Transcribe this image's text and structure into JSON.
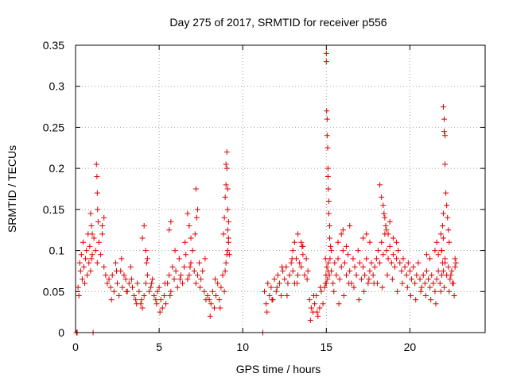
{
  "chart_data": {
    "type": "scatter",
    "title": "Day 275 of 2017, SRMTID for receiver p556",
    "xlabel": "GPS time / hours",
    "ylabel": "SRMTID / TECUs",
    "xlim": [
      0,
      24.5
    ],
    "ylim": [
      0,
      0.35
    ],
    "xticks": [
      0,
      5,
      10,
      15,
      20
    ],
    "yticks": [
      0,
      0.05,
      0.1,
      0.15,
      0.2,
      0.25,
      0.3,
      0.35
    ],
    "xtick_labels": [
      "0",
      "5",
      "10",
      "15",
      "20"
    ],
    "ytick_labels": [
      "0",
      "0.05",
      "0.1",
      "0.15",
      "0.2",
      "0.25",
      "0.3",
      "0.35"
    ],
    "grid": true,
    "marker": "+",
    "color": "#e00000",
    "series": [
      {
        "name": "SRMTID",
        "x": [
          0.05,
          0.1,
          1.05,
          11.2,
          0.15,
          0.2,
          0.25,
          0.3,
          0.35,
          0.4,
          0.45,
          0.5,
          0.55,
          0.6,
          0.65,
          0.7,
          0.75,
          0.8,
          0.85,
          0.9,
          0.95,
          1.0,
          1.1,
          1.2,
          1.3,
          1.4,
          1.5,
          1.6,
          1.7,
          1.8,
          1.9,
          1.25,
          1.28,
          1.3,
          1.32,
          1.35,
          0.9,
          0.95,
          1.0,
          1.6,
          1.7,
          2.0,
          2.1,
          2.2,
          2.3,
          2.4,
          2.5,
          2.6,
          2.7,
          2.8,
          2.9,
          3.0,
          3.1,
          3.2,
          3.3,
          3.4,
          3.5,
          3.6,
          3.7,
          3.8,
          3.9,
          4.0,
          4.1,
          4.2,
          4.3,
          4.4,
          4.5,
          4.6,
          4.7,
          4.8,
          4.9,
          2.15,
          2.45,
          2.75,
          3.05,
          3.35,
          3.65,
          3.95,
          4.25,
          4.55,
          4.85,
          4.0,
          4.1,
          4.2,
          4.3,
          5.0,
          5.1,
          5.2,
          5.3,
          5.4,
          5.5,
          5.6,
          5.7,
          5.8,
          5.9,
          6.0,
          6.1,
          6.2,
          6.3,
          6.4,
          6.5,
          6.6,
          6.7,
          6.8,
          6.9,
          7.0,
          7.1,
          7.2,
          7.3,
          7.4,
          7.5,
          7.6,
          7.7,
          7.8,
          7.9,
          5.05,
          5.35,
          5.65,
          5.95,
          6.25,
          6.55,
          6.85,
          7.15,
          7.45,
          7.75,
          5.6,
          5.7,
          6.7,
          6.8,
          6.9,
          7.2,
          7.3,
          7.25,
          8.0,
          8.1,
          8.2,
          8.3,
          8.4,
          8.5,
          8.6,
          8.7,
          8.8,
          8.9,
          9.0,
          9.05,
          9.1,
          9.15,
          8.05,
          8.35,
          8.65,
          8.95,
          8.85,
          8.9,
          8.95,
          9.0,
          9.0,
          9.05,
          9.05,
          9.1,
          9.1,
          9.15,
          9.1,
          9.15,
          9.2,
          11.3,
          11.4,
          11.5,
          11.6,
          11.7,
          11.8,
          11.9,
          12.0,
          12.1,
          12.2,
          12.3,
          12.4,
          12.5,
          12.6,
          12.7,
          12.8,
          12.9,
          13.0,
          13.1,
          13.2,
          13.3,
          13.4,
          13.5,
          13.6,
          13.7,
          13.8,
          13.9,
          11.45,
          11.75,
          12.05,
          12.35,
          12.65,
          12.95,
          13.25,
          13.55,
          13.85,
          13.0,
          13.1,
          13.3,
          13.5,
          13.6,
          14.0,
          14.1,
          14.2,
          14.3,
          14.4,
          14.5,
          14.6,
          14.7,
          14.8,
          14.9,
          14.95,
          14.05,
          14.25,
          14.45,
          14.65,
          14.95,
          15.0,
          15.0,
          15.02,
          15.05,
          15.05,
          15.08,
          15.1,
          15.1,
          15.12,
          15.15,
          15.15,
          15.2,
          15.2,
          15.25,
          15.3,
          14.98,
          15.0,
          15.03,
          15.07,
          15.1,
          15.12,
          15.18,
          15.22,
          15.3,
          15.4,
          15.5,
          15.6,
          15.7,
          15.8,
          15.9,
          16.0,
          16.1,
          16.2,
          16.3,
          16.4,
          16.5,
          16.6,
          16.7,
          16.8,
          16.9,
          17.0,
          17.1,
          17.2,
          17.3,
          17.4,
          17.5,
          17.6,
          17.7,
          17.8,
          17.9,
          15.45,
          15.75,
          16.05,
          16.35,
          16.65,
          16.95,
          17.25,
          17.55,
          17.85,
          15.7,
          15.9,
          16.0,
          16.2,
          16.4,
          17.2,
          17.4,
          17.6,
          18.0,
          18.1,
          18.2,
          18.3,
          18.4,
          18.5,
          18.6,
          18.7,
          18.8,
          18.9,
          19.0,
          19.1,
          19.2,
          19.3,
          19.4,
          19.5,
          19.6,
          19.7,
          19.8,
          19.9,
          18.05,
          18.35,
          18.65,
          18.95,
          19.25,
          19.55,
          19.85,
          18.2,
          18.3,
          18.4,
          18.45,
          18.5,
          18.55,
          18.6,
          18.7,
          18.8,
          19.0,
          19.2,
          20.0,
          20.1,
          20.2,
          20.3,
          20.4,
          20.5,
          20.6,
          20.7,
          20.8,
          20.9,
          21.0,
          21.1,
          21.2,
          21.3,
          21.4,
          21.5,
          21.6,
          21.7,
          21.8,
          21.9,
          20.05,
          20.35,
          20.65,
          20.95,
          21.25,
          21.55,
          21.85,
          21.0,
          21.2,
          21.5,
          21.6,
          21.7,
          21.85,
          21.9,
          21.95,
          21.95,
          22.0,
          22.0,
          22.05,
          22.05,
          22.1,
          22.1,
          22.15,
          22.2,
          22.25,
          22.3,
          22.35,
          21.9,
          22.0,
          22.1,
          22.0,
          22.1,
          22.2,
          22.3,
          22.4,
          22.5,
          22.6,
          22.7,
          22.75,
          22.05,
          22.35,
          22.65,
          22.45,
          22.55,
          22.7
        ],
        "y": [
          0,
          0,
          0,
          0,
          0.055,
          0.045,
          0.085,
          0.075,
          0.095,
          0.065,
          0.11,
          0.08,
          0.06,
          0.09,
          0.1,
          0.07,
          0.12,
          0.085,
          0.105,
          0.075,
          0.09,
          0.095,
          0.115,
          0.1,
          0.085,
          0.11,
          0.095,
          0.12,
          0.08,
          0.07,
          0.06,
          0.205,
          0.19,
          0.17,
          0.15,
          0.135,
          0.145,
          0.13,
          0.12,
          0.13,
          0.14,
          0.065,
          0.055,
          0.07,
          0.05,
          0.085,
          0.06,
          0.045,
          0.075,
          0.055,
          0.07,
          0.065,
          0.05,
          0.06,
          0.08,
          0.055,
          0.045,
          0.04,
          0.06,
          0.05,
          0.035,
          0.03,
          0.045,
          0.06,
          0.07,
          0.05,
          0.055,
          0.065,
          0.045,
          0.04,
          0.05,
          0.04,
          0.075,
          0.09,
          0.05,
          0.065,
          0.035,
          0.04,
          0.085,
          0.06,
          0.035,
          0.115,
          0.13,
          0.1,
          0.09,
          0.055,
          0.04,
          0.03,
          0.045,
          0.035,
          0.06,
          0.07,
          0.05,
          0.08,
          0.065,
          0.075,
          0.055,
          0.09,
          0.07,
          0.06,
          0.08,
          0.095,
          0.065,
          0.07,
          0.085,
          0.1,
          0.075,
          0.06,
          0.07,
          0.085,
          0.065,
          0.075,
          0.05,
          0.04,
          0.045,
          0.025,
          0.06,
          0.045,
          0.1,
          0.065,
          0.11,
          0.08,
          0.12,
          0.055,
          0.09,
          0.125,
          0.135,
          0.145,
          0.13,
          0.115,
          0.175,
          0.15,
          0.14,
          0.04,
          0.035,
          0.05,
          0.03,
          0.045,
          0.06,
          0.04,
          0.055,
          0.07,
          0.05,
          0.085,
          0.095,
          0.1,
          0.11,
          0.02,
          0.065,
          0.03,
          0.075,
          0.12,
          0.14,
          0.165,
          0.18,
          0.205,
          0.2,
          0.22,
          0.175,
          0.15,
          0.135,
          0.125,
          0.115,
          0.095,
          0.05,
          0.035,
          0.06,
          0.045,
          0.055,
          0.04,
          0.065,
          0.05,
          0.07,
          0.06,
          0.045,
          0.075,
          0.065,
          0.08,
          0.06,
          0.07,
          0.085,
          0.075,
          0.06,
          0.09,
          0.07,
          0.085,
          0.08,
          0.095,
          0.07,
          0.09,
          0.075,
          0.025,
          0.04,
          0.055,
          0.08,
          0.045,
          0.09,
          0.06,
          0.105,
          0.065,
          0.1,
          0.11,
          0.12,
          0.11,
          0.105,
          0.04,
          0.03,
          0.025,
          0.035,
          0.045,
          0.02,
          0.03,
          0.05,
          0.035,
          0.055,
          0.06,
          0.015,
          0.045,
          0.025,
          0.055,
          0.09,
          0.34,
          0.33,
          0.27,
          0.26,
          0.24,
          0.225,
          0.2,
          0.19,
          0.175,
          0.16,
          0.145,
          0.13,
          0.115,
          0.105,
          0.1,
          0.07,
          0.06,
          0.08,
          0.065,
          0.075,
          0.085,
          0.07,
          0.09,
          0.075,
          0.06,
          0.085,
          0.07,
          0.09,
          0.065,
          0.08,
          0.1,
          0.085,
          0.07,
          0.095,
          0.075,
          0.06,
          0.09,
          0.08,
          0.07,
          0.1,
          0.085,
          0.065,
          0.08,
          0.07,
          0.09,
          0.06,
          0.075,
          0.085,
          0.07,
          0.08,
          0.05,
          0.035,
          0.045,
          0.06,
          0.055,
          0.04,
          0.05,
          0.065,
          0.06,
          0.11,
          0.12,
          0.125,
          0.105,
          0.13,
          0.115,
          0.12,
          0.11,
          0.09,
          0.1,
          0.085,
          0.11,
          0.095,
          0.12,
          0.1,
          0.09,
          0.105,
          0.085,
          0.095,
          0.08,
          0.09,
          0.1,
          0.085,
          0.075,
          0.09,
          0.08,
          0.07,
          0.085,
          0.06,
          0.055,
          0.07,
          0.065,
          0.05,
          0.06,
          0.055,
          0.18,
          0.165,
          0.155,
          0.145,
          0.14,
          0.13,
          0.125,
          0.12,
          0.135,
          0.115,
          0.11,
          0.075,
          0.065,
          0.08,
          0.06,
          0.07,
          0.085,
          0.065,
          0.055,
          0.07,
          0.06,
          0.075,
          0.065,
          0.055,
          0.07,
          0.06,
          0.05,
          0.065,
          0.075,
          0.06,
          0.07,
          0.045,
          0.04,
          0.05,
          0.045,
          0.04,
          0.035,
          0.05,
          0.095,
          0.09,
          0.1,
          0.11,
          0.095,
          0.12,
          0.1,
          0.13,
          0.085,
          0.145,
          0.275,
          0.26,
          0.245,
          0.24,
          0.205,
          0.17,
          0.155,
          0.14,
          0.125,
          0.11,
          0.1,
          0.115,
          0.09,
          0.075,
          0.085,
          0.07,
          0.08,
          0.065,
          0.075,
          0.06,
          0.08,
          0.085,
          0.055,
          0.05,
          0.045,
          0.07,
          0.06,
          0.09
        ]
      }
    ]
  }
}
